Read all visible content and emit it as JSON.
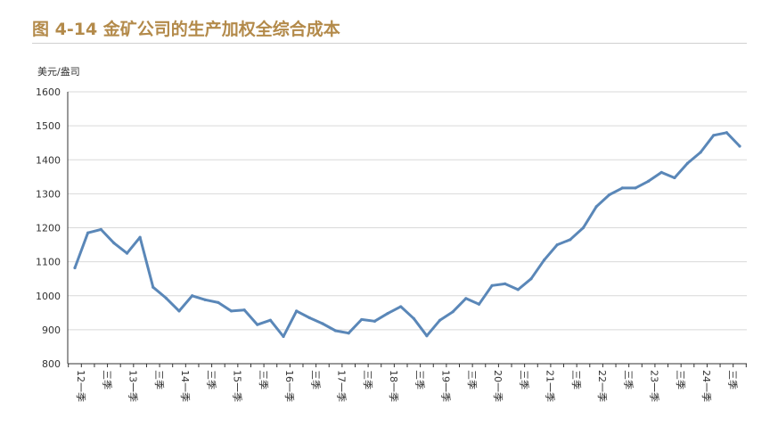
{
  "figure": {
    "title": "图 4-14  金矿公司的生产加权全综合成本"
  },
  "chart_data": {
    "type": "line",
    "title": "图 4-14  金矿公司的生产加权全综合成本",
    "ylabel": "美元/盎司",
    "xlabel": "",
    "ylim": [
      800,
      1600
    ],
    "yticks": [
      800,
      900,
      1000,
      1100,
      1200,
      1300,
      1400,
      1500,
      1600
    ],
    "grid": true,
    "color": "#5a87b8",
    "categories": [
      "12一季",
      "",
      "三季",
      "",
      "13一季",
      "",
      "三季",
      "",
      "14一季",
      "",
      "三季",
      "",
      "15一季",
      "",
      "三季",
      "",
      "16一季",
      "",
      "三季",
      "",
      "17一季",
      "",
      "三季",
      "",
      "18一季",
      "",
      "三季",
      "",
      "19一季",
      "",
      "三季",
      "",
      "20一季",
      "",
      "三季",
      "",
      "21一季",
      "",
      "三季",
      "",
      "22一季",
      "",
      "三季",
      "",
      "23一季",
      "",
      "三季",
      "",
      "24一季",
      "",
      "三季",
      ""
    ],
    "values": [
      1082,
      1185,
      1195,
      1155,
      1125,
      1172,
      1025,
      993,
      955,
      1000,
      988,
      980,
      955,
      958,
      915,
      928,
      880,
      955,
      935,
      918,
      897,
      890,
      930,
      925,
      948,
      968,
      933,
      882,
      928,
      953,
      992,
      975,
      1030,
      1035,
      1018,
      1050,
      1105,
      1150,
      1165,
      1200,
      1262,
      1297,
      1317,
      1317,
      1337,
      1363,
      1347,
      1390,
      1422,
      1472,
      1480,
      1440
    ]
  }
}
